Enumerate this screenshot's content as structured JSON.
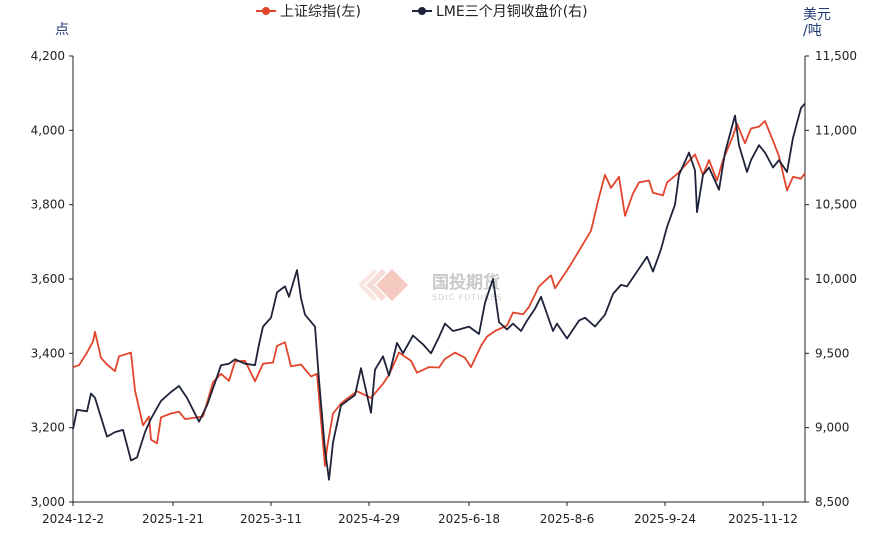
{
  "chart_data": {
    "type": "line",
    "left_unit": "点",
    "right_unit": [
      "美元",
      "/吨"
    ],
    "legend": "top-center",
    "grid": false,
    "y_left": {
      "min": 3000,
      "max": 4200,
      "ticks": [
        "3,000",
        "3,200",
        "3,400",
        "3,600",
        "3,800",
        "4,000",
        "4,200"
      ],
      "tick_values": [
        3000,
        3200,
        3400,
        3600,
        3800,
        4000,
        4200
      ]
    },
    "y_right": {
      "min": 8500,
      "max": 11500,
      "ticks": [
        "8,500",
        "9,000",
        "9,500",
        "10,000",
        "10,500",
        "11,000",
        "11,500"
      ],
      "tick_values": [
        8500,
        9000,
        9500,
        10000,
        10500,
        11000,
        11500
      ]
    },
    "x_tick_labels": [
      "2024-12-2",
      "2025-1-21",
      "2025-3-11",
      "2025-4-29",
      "2025-6-18",
      "2025-8-6",
      "2025-9-24",
      "2025-11-12"
    ],
    "x_tick_dates": [
      "2024-12-02",
      "2025-01-21",
      "2025-03-11",
      "2025-04-29",
      "2025-06-18",
      "2025-08-06",
      "2025-09-24",
      "2025-11-12"
    ],
    "x_range": [
      "2024-12-02",
      "2025-12-03"
    ],
    "series": [
      {
        "name": "上证综指(左)",
        "axis": "left",
        "color": "#e2452c",
        "points": [
          [
            "2024-12-02",
            3363
          ],
          [
            "2024-12-05",
            3368
          ],
          [
            "2024-12-09",
            3402
          ],
          [
            "2024-12-12",
            3432
          ],
          [
            "2024-12-13",
            3458
          ],
          [
            "2024-12-16",
            3388
          ],
          [
            "2024-12-19",
            3370
          ],
          [
            "2024-12-23",
            3352
          ],
          [
            "2024-12-25",
            3392
          ],
          [
            "2024-12-31",
            3402
          ],
          [
            "2025-01-02",
            3300
          ],
          [
            "2025-01-06",
            3206
          ],
          [
            "2025-01-09",
            3230
          ],
          [
            "2025-01-10",
            3168
          ],
          [
            "2025-01-13",
            3158
          ],
          [
            "2025-01-15",
            3228
          ],
          [
            "2025-01-20",
            3238
          ],
          [
            "2025-01-24",
            3243
          ],
          [
            "2025-01-27",
            3223
          ],
          [
            "2025-02-05",
            3230
          ],
          [
            "2025-02-10",
            3322
          ],
          [
            "2025-02-14",
            3345
          ],
          [
            "2025-02-18",
            3326
          ],
          [
            "2025-02-21",
            3378
          ],
          [
            "2025-02-26",
            3380
          ],
          [
            "2025-03-03",
            3325
          ],
          [
            "2025-03-07",
            3372
          ],
          [
            "2025-03-12",
            3375
          ],
          [
            "2025-03-14",
            3420
          ],
          [
            "2025-03-18",
            3430
          ],
          [
            "2025-03-21",
            3365
          ],
          [
            "2025-03-26",
            3370
          ],
          [
            "2025-03-31",
            3338
          ],
          [
            "2025-04-03",
            3345
          ],
          [
            "2025-04-07",
            3097
          ],
          [
            "2025-04-08",
            3145
          ],
          [
            "2025-04-11",
            3238
          ],
          [
            "2025-04-15",
            3265
          ],
          [
            "2025-04-18",
            3278
          ],
          [
            "2025-04-23",
            3298
          ],
          [
            "2025-04-30",
            3280
          ],
          [
            "2025-05-06",
            3318
          ],
          [
            "2025-05-09",
            3342
          ],
          [
            "2025-05-14",
            3402
          ],
          [
            "2025-05-20",
            3380
          ],
          [
            "2025-05-23",
            3348
          ],
          [
            "2025-05-29",
            3363
          ],
          [
            "2025-06-03",
            3362
          ],
          [
            "2025-06-06",
            3385
          ],
          [
            "2025-06-11",
            3402
          ],
          [
            "2025-06-16",
            3388
          ],
          [
            "2025-06-19",
            3363
          ],
          [
            "2025-06-24",
            3420
          ],
          [
            "2025-06-27",
            3445
          ],
          [
            "2025-07-01",
            3460
          ],
          [
            "2025-07-07",
            3475
          ],
          [
            "2025-07-10",
            3510
          ],
          [
            "2025-07-15",
            3505
          ],
          [
            "2025-07-18",
            3525
          ],
          [
            "2025-07-23",
            3580
          ],
          [
            "2025-07-29",
            3610
          ],
          [
            "2025-07-31",
            3575
          ],
          [
            "2025-08-05",
            3615
          ],
          [
            "2025-08-08",
            3640
          ],
          [
            "2025-08-13",
            3685
          ],
          [
            "2025-08-18",
            3730
          ],
          [
            "2025-08-22",
            3820
          ],
          [
            "2025-08-25",
            3880
          ],
          [
            "2025-08-28",
            3845
          ],
          [
            "2025-09-01",
            3875
          ],
          [
            "2025-09-04",
            3770
          ],
          [
            "2025-09-08",
            3830
          ],
          [
            "2025-09-11",
            3860
          ],
          [
            "2025-09-16",
            3865
          ],
          [
            "2025-09-18",
            3832
          ],
          [
            "2025-09-23",
            3825
          ],
          [
            "2025-09-25",
            3860
          ],
          [
            "2025-09-30",
            3882
          ],
          [
            "2025-10-09",
            3935
          ],
          [
            "2025-10-13",
            3880
          ],
          [
            "2025-10-16",
            3920
          ],
          [
            "2025-10-20",
            3865
          ],
          [
            "2025-10-23",
            3920
          ],
          [
            "2025-10-28",
            3985
          ],
          [
            "2025-10-30",
            4018
          ],
          [
            "2025-11-03",
            3965
          ],
          [
            "2025-11-06",
            4005
          ],
          [
            "2025-11-10",
            4010
          ],
          [
            "2025-11-13",
            4025
          ],
          [
            "2025-11-17",
            3972
          ],
          [
            "2025-11-20",
            3930
          ],
          [
            "2025-11-24",
            3838
          ],
          [
            "2025-11-27",
            3875
          ],
          [
            "2025-12-01",
            3870
          ],
          [
            "2025-12-03",
            3885
          ]
        ]
      },
      {
        "name": "LME三个月铜收盘价(右)",
        "axis": "right",
        "color": "#1e2339",
        "points": [
          [
            "2024-12-02",
            8990
          ],
          [
            "2024-12-04",
            9120
          ],
          [
            "2024-12-09",
            9110
          ],
          [
            "2024-12-11",
            9230
          ],
          [
            "2024-12-13",
            9200
          ],
          [
            "2024-12-16",
            9070
          ],
          [
            "2024-12-19",
            8940
          ],
          [
            "2024-12-23",
            8970
          ],
          [
            "2024-12-27",
            8985
          ],
          [
            "2024-12-31",
            8780
          ],
          [
            "2025-01-03",
            8800
          ],
          [
            "2025-01-07",
            8970
          ],
          [
            "2025-01-10",
            9060
          ],
          [
            "2025-01-15",
            9180
          ],
          [
            "2025-01-20",
            9240
          ],
          [
            "2025-01-24",
            9280
          ],
          [
            "2025-01-28",
            9200
          ],
          [
            "2025-02-03",
            9040
          ],
          [
            "2025-02-07",
            9150
          ],
          [
            "2025-02-12",
            9340
          ],
          [
            "2025-02-14",
            9420
          ],
          [
            "2025-02-18",
            9430
          ],
          [
            "2025-02-21",
            9460
          ],
          [
            "2025-02-26",
            9430
          ],
          [
            "2025-03-03",
            9420
          ],
          [
            "2025-03-05",
            9560
          ],
          [
            "2025-03-07",
            9680
          ],
          [
            "2025-03-11",
            9740
          ],
          [
            "2025-03-14",
            9910
          ],
          [
            "2025-03-18",
            9950
          ],
          [
            "2025-03-20",
            9880
          ],
          [
            "2025-03-24",
            10060
          ],
          [
            "2025-03-26",
            9870
          ],
          [
            "2025-03-28",
            9760
          ],
          [
            "2025-04-02",
            9680
          ],
          [
            "2025-04-04",
            9320
          ],
          [
            "2025-04-07",
            8850
          ],
          [
            "2025-04-09",
            8650
          ],
          [
            "2025-04-11",
            8900
          ],
          [
            "2025-04-15",
            9150
          ],
          [
            "2025-04-18",
            9180
          ],
          [
            "2025-04-22",
            9220
          ],
          [
            "2025-04-25",
            9400
          ],
          [
            "2025-04-30",
            9100
          ],
          [
            "2025-05-02",
            9390
          ],
          [
            "2025-05-06",
            9480
          ],
          [
            "2025-05-09",
            9350
          ],
          [
            "2025-05-13",
            9570
          ],
          [
            "2025-05-16",
            9500
          ],
          [
            "2025-05-21",
            9620
          ],
          [
            "2025-05-26",
            9560
          ],
          [
            "2025-05-30",
            9500
          ],
          [
            "2025-06-03",
            9610
          ],
          [
            "2025-06-06",
            9700
          ],
          [
            "2025-06-10",
            9650
          ],
          [
            "2025-06-13",
            9660
          ],
          [
            "2025-06-18",
            9680
          ],
          [
            "2025-06-23",
            9630
          ],
          [
            "2025-06-26",
            9840
          ],
          [
            "2025-06-30",
            10000
          ],
          [
            "2025-07-03",
            9710
          ],
          [
            "2025-07-07",
            9660
          ],
          [
            "2025-07-10",
            9700
          ],
          [
            "2025-07-14",
            9650
          ],
          [
            "2025-07-17",
            9720
          ],
          [
            "2025-07-21",
            9800
          ],
          [
            "2025-07-24",
            9880
          ],
          [
            "2025-07-30",
            9650
          ],
          [
            "2025-08-01",
            9700
          ],
          [
            "2025-08-06",
            9600
          ],
          [
            "2025-08-12",
            9720
          ],
          [
            "2025-08-15",
            9740
          ],
          [
            "2025-08-20",
            9680
          ],
          [
            "2025-08-25",
            9760
          ],
          [
            "2025-08-29",
            9900
          ],
          [
            "2025-09-02",
            9960
          ],
          [
            "2025-09-05",
            9950
          ],
          [
            "2025-09-10",
            10050
          ],
          [
            "2025-09-15",
            10150
          ],
          [
            "2025-09-18",
            10050
          ],
          [
            "2025-09-22",
            10200
          ],
          [
            "2025-09-25",
            10350
          ],
          [
            "2025-09-29",
            10500
          ],
          [
            "2025-10-01",
            10700
          ],
          [
            "2025-10-06",
            10850
          ],
          [
            "2025-10-09",
            10730
          ],
          [
            "2025-10-10",
            10450
          ],
          [
            "2025-10-13",
            10700
          ],
          [
            "2025-10-16",
            10750
          ],
          [
            "2025-10-21",
            10600
          ],
          [
            "2025-10-24",
            10850
          ],
          [
            "2025-10-29",
            11100
          ],
          [
            "2025-10-31",
            10900
          ],
          [
            "2025-11-04",
            10720
          ],
          [
            "2025-11-06",
            10800
          ],
          [
            "2025-11-10",
            10900
          ],
          [
            "2025-11-13",
            10850
          ],
          [
            "2025-11-17",
            10750
          ],
          [
            "2025-11-20",
            10800
          ],
          [
            "2025-11-24",
            10720
          ],
          [
            "2025-11-27",
            10950
          ],
          [
            "2025-12-01",
            11150
          ],
          [
            "2025-12-03",
            11180
          ]
        ]
      }
    ]
  },
  "watermark": {
    "name": "国投期货",
    "sub": "SDIC FUTURES"
  }
}
